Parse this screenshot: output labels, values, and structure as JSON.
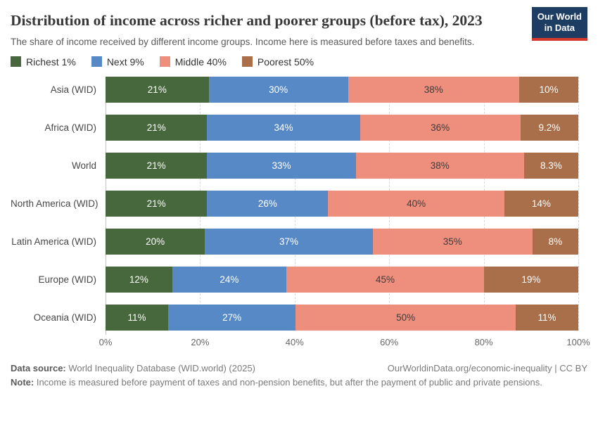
{
  "header": {
    "title": "Distribution of income across richer and poorer groups (before tax), 2023",
    "subtitle": "The share of income received by different income groups. Income here is measured before taxes and benefits.",
    "logo": {
      "line1": "Our World",
      "line2": "in Data"
    }
  },
  "colors": {
    "richest1": "#47673c",
    "next9": "#5789c7",
    "middle40": "#ee8e7c",
    "poorest50": "#a96f4a",
    "logo_bg": "#1d3d63",
    "logo_stripe": "#d7382e"
  },
  "chart_data": {
    "type": "bar",
    "stacked": true,
    "orientation": "horizontal",
    "title": "Distribution of income across richer and poorer groups (before tax), 2023",
    "subtitle": "The share of income received by different income groups. Income here is measured before taxes and benefits.",
    "legend_position": "top",
    "grid": "vertical-dashed",
    "xlim": [
      0,
      100
    ],
    "x_ticks": [
      "0%",
      "20%",
      "40%",
      "60%",
      "80%",
      "100%"
    ],
    "categories": [
      "Asia (WID)",
      "Africa (WID)",
      "World",
      "North America (WID)",
      "Latin America (WID)",
      "Europe (WID)",
      "Oceania (WID)"
    ],
    "series": [
      {
        "name": "Richest 1%",
        "color": "#47673c",
        "label_color": "#ffffff",
        "values": [
          21,
          21,
          21,
          21,
          20,
          12,
          11
        ],
        "labels": [
          "21%",
          "21%",
          "21%",
          "21%",
          "20%",
          "12%",
          "11%"
        ]
      },
      {
        "name": "Next 9%",
        "color": "#5789c7",
        "label_color": "#ffffff",
        "values": [
          30,
          34,
          33,
          26,
          37,
          24,
          27
        ],
        "labels": [
          "30%",
          "34%",
          "33%",
          "26%",
          "37%",
          "24%",
          "27%"
        ]
      },
      {
        "name": "Middle 40%",
        "color": "#ee8e7c",
        "label_color": "#3d3d3d",
        "values": [
          38,
          36,
          38,
          40,
          35,
          45,
          50
        ],
        "labels": [
          "38%",
          "36%",
          "38%",
          "40%",
          "35%",
          "45%",
          "50%"
        ]
      },
      {
        "name": "Poorest 50%",
        "color": "#a96f4a",
        "label_color": "#ffffff",
        "values": [
          10,
          9.2,
          8.3,
          14,
          8,
          19,
          11
        ],
        "labels": [
          "10%",
          "9.2%",
          "8.3%",
          "14%",
          "8%",
          "19%",
          "11%"
        ]
      }
    ]
  },
  "footer": {
    "source_label": "Data source:",
    "source_text": " World Inequality Database (WID.world) (2025)",
    "link_text": "OurWorldinData.org/economic-inequality",
    "license_text": " | CC BY",
    "note_label": "Note:",
    "note_text": " Income is measured before payment of taxes and non-pension benefits, but after the payment of public and private pensions."
  }
}
